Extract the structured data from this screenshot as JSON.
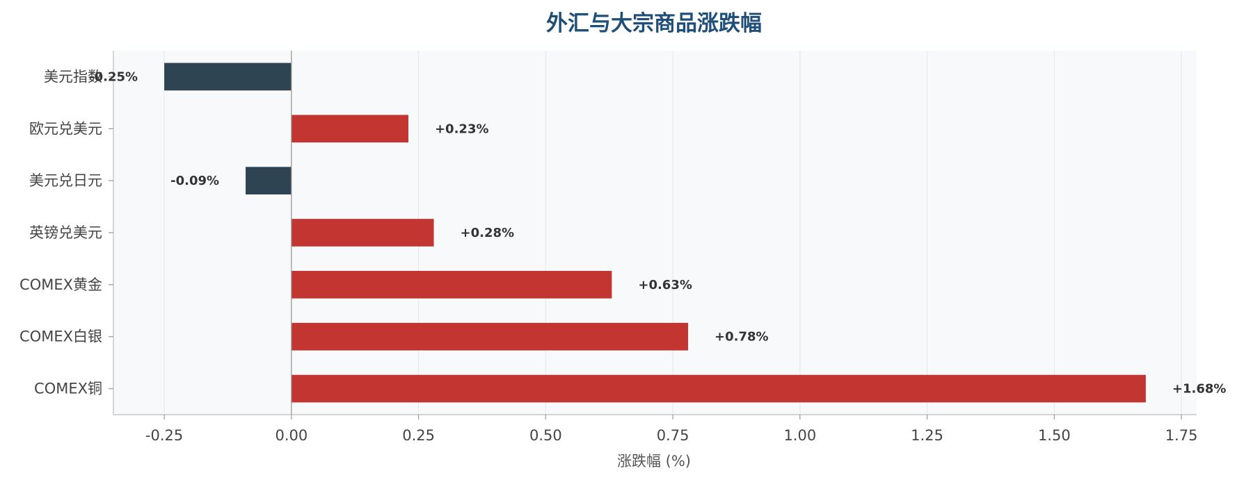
{
  "chart_data": {
    "type": "bar",
    "orientation": "horizontal",
    "title": "外汇与大宗商品涨跌幅",
    "xlabel": "涨跌幅 (%)",
    "ylabel": "",
    "xlim": [
      -0.35,
      1.78
    ],
    "xticks": [
      -0.25,
      0.0,
      0.25,
      0.5,
      0.75,
      1.0,
      1.25,
      1.5,
      1.75
    ],
    "xtick_labels": [
      "-0.25",
      "0.00",
      "0.25",
      "0.50",
      "0.75",
      "1.00",
      "1.25",
      "1.50",
      "1.75"
    ],
    "categories": [
      "美元指数",
      "欧元兑美元",
      "美元兑日元",
      "英镑兑美元",
      "COMEX黄金",
      "COMEX白银",
      "COMEX铜"
    ],
    "values": [
      -0.25,
      0.23,
      -0.09,
      0.28,
      0.63,
      0.78,
      1.68
    ],
    "data_labels": [
      "-0.25%",
      "+0.23%",
      "-0.09%",
      "+0.28%",
      "+0.63%",
      "+0.78%",
      "+1.68%"
    ],
    "grid": "vertical",
    "colors": {
      "positive": "#c23531",
      "negative": "#2e4453",
      "plot_background": "#f8f9fb",
      "grid": "#e3e6ea",
      "zero_line": "#999999",
      "title": "#1f4e79"
    }
  }
}
